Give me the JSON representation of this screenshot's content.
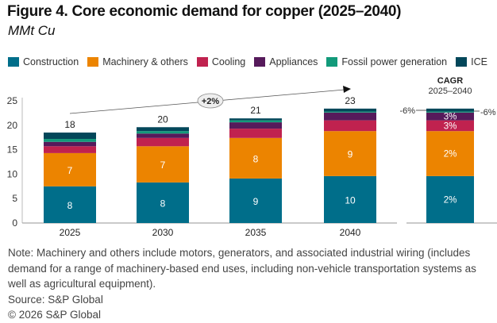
{
  "title": "Figure 4. Core economic demand for copper (2025–2040)",
  "subtitle": "MMt Cu",
  "chart_data": {
    "type": "bar",
    "stacked": true,
    "title": "Figure 4. Core economic demand for copper (2025–2040)",
    "ylabel": "MMt Cu",
    "ylim": [
      0,
      25
    ],
    "yticks": [
      "0",
      "5",
      "10",
      "15",
      "20",
      "25"
    ],
    "categories": [
      "2025",
      "2030",
      "2035",
      "2040"
    ],
    "totals": [
      "18",
      "20",
      "21",
      "23"
    ],
    "series": [
      {
        "name": "Construction",
        "color": "#006e8a",
        "values": [
          7.5,
          8.3,
          9.1,
          9.6
        ],
        "labels": [
          "8",
          "8",
          "9",
          "10"
        ],
        "cagr": "2%"
      },
      {
        "name": "Machinery & others",
        "color": "#ec8400",
        "values": [
          6.8,
          7.4,
          8.3,
          9.2
        ],
        "labels": [
          "7",
          "7",
          "8",
          "9"
        ],
        "cagr": "2%"
      },
      {
        "name": "Cooling",
        "color": "#c0224f",
        "values": [
          1.4,
          1.7,
          1.9,
          2.2
        ],
        "labels": [
          "",
          "",
          "",
          ""
        ],
        "cagr": "3%"
      },
      {
        "name": "Appliances",
        "color": "#561a5b",
        "values": [
          0.9,
          0.9,
          1.3,
          1.6
        ],
        "labels": [
          "",
          "",
          "",
          ""
        ],
        "cagr": "3%"
      },
      {
        "name": "Fossil power generation",
        "color": "#129a7a",
        "values": [
          0.6,
          0.5,
          0.4,
          0.2
        ],
        "labels": [
          "",
          "",
          "",
          ""
        ],
        "cagr": "-6%"
      },
      {
        "name": "ICE",
        "color": "#03475a",
        "values": [
          1.3,
          0.8,
          0.4,
          0.6
        ],
        "labels": [
          "",
          "",
          "",
          ""
        ],
        "cagr": "-6%"
      }
    ],
    "trend_label": "+2%",
    "cagr_title": "CAGR",
    "cagr_period": "2025–2040",
    "legend_position": "top"
  },
  "notes": {
    "note": "Note: Machinery and others include motors, generators, and associated industrial wiring (includes demand for a range of machinery-based end uses, including non-vehicle transportation systems as well as agricultural equipment).",
    "source": "Source: S&P Global",
    "copyright": "© 2026 S&P Global"
  }
}
